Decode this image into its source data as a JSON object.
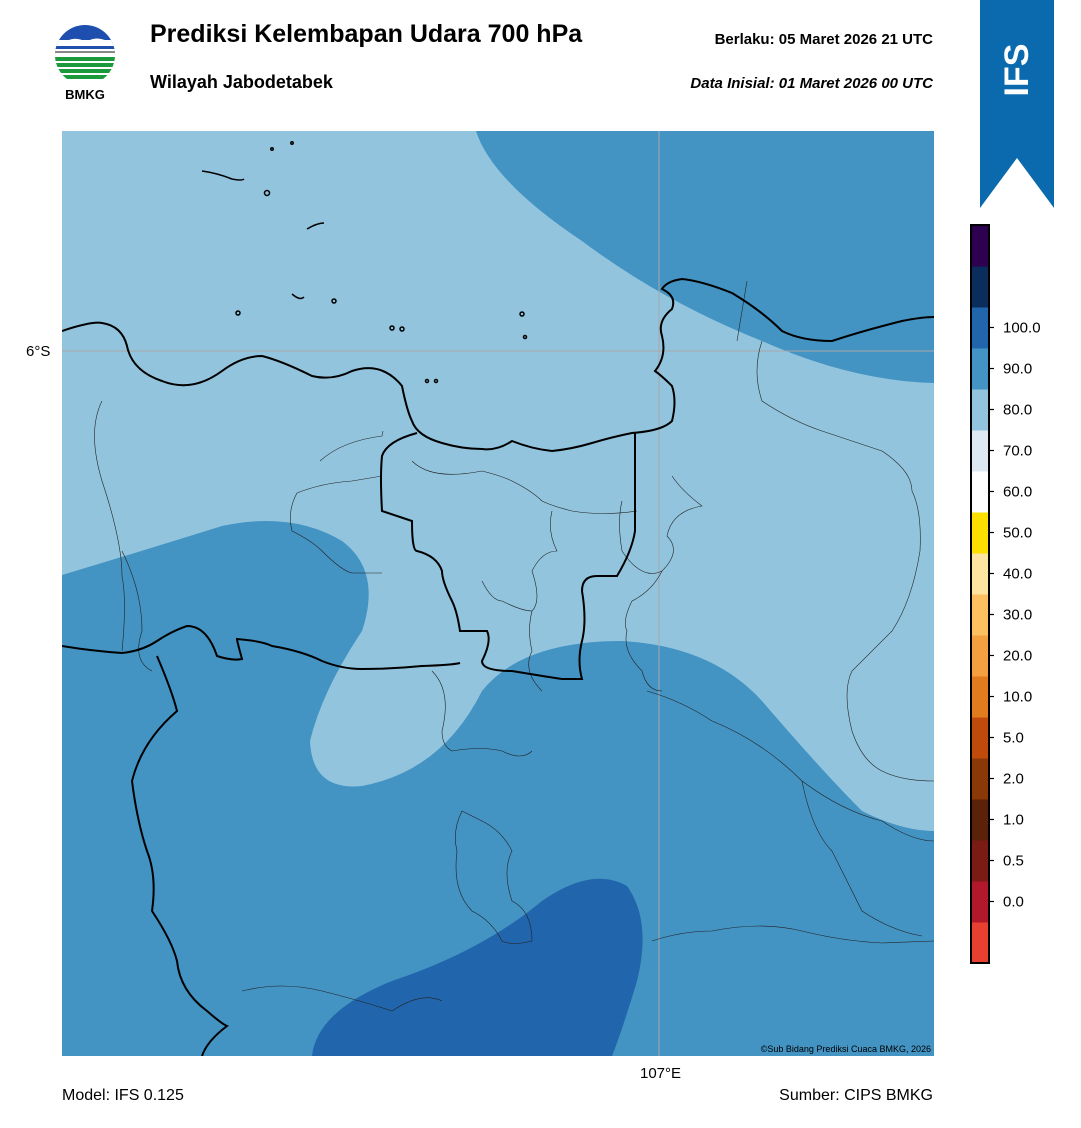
{
  "header": {
    "title": "Prediksi Kelembapan Udara 700 hPa",
    "subtitle": "Wilayah Jabodetabek",
    "valid_time": "Berlaku:  05 Maret 2026 21 UTC",
    "initial_time": "Data Inisial:  01 Maret 2026 00 UTC"
  },
  "logo": {
    "text": "BMKG",
    "icon": "bmkg-logo-icon"
  },
  "ribbon": {
    "text": "IFS",
    "color": "#0b6aad"
  },
  "map": {
    "lat_label": "6°S",
    "lon_label": "107°E",
    "credit": "©Sub Bidang Prediksi Cuaca BMKG, 2026",
    "fill_colors": {
      "60-70": "#92c4de",
      "70-80": "#4393c3",
      "80-90": "#2166ac"
    }
  },
  "colorbar": {
    "ticks": [
      "0.0",
      "0.5",
      "1.0",
      "2.0",
      "5.0",
      "10.0",
      "20.0",
      "30.0",
      "40.0",
      "50.0",
      "60.0",
      "70.0",
      "80.0",
      "90.0",
      "100.0"
    ],
    "colors": [
      "#e84030",
      "#b2182b",
      "#7a1c14",
      "#5a2208",
      "#8a3808",
      "#c04a0c",
      "#e07c1e",
      "#f4a040",
      "#fcc060",
      "#fde4a0",
      "#fde000",
      "#ffffff",
      "#dce8f2",
      "#92c4de",
      "#4393c3",
      "#2166ac",
      "#0a2d5c",
      "#2d0050"
    ]
  },
  "footer": {
    "model": "Model: IFS 0.125",
    "source": "Sumber: CIPS BMKG"
  }
}
